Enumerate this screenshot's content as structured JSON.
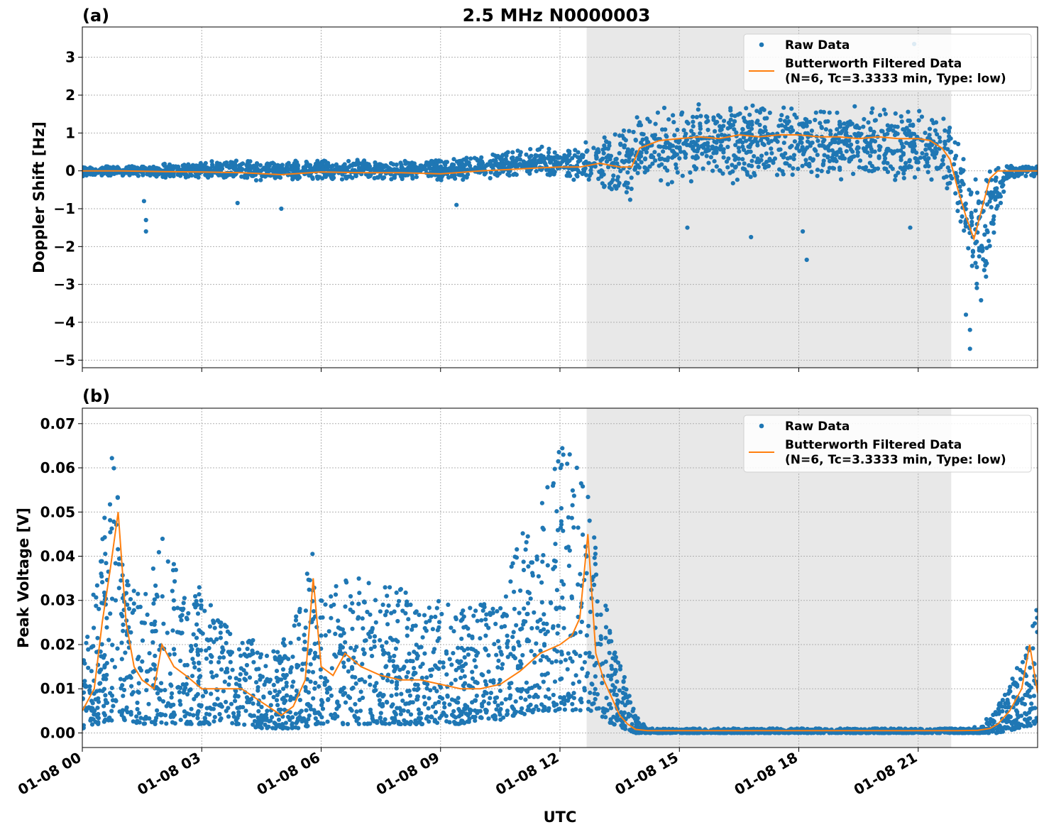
{
  "figure": {
    "title": "2.5 MHz N0000003",
    "xlabel": "UTC",
    "x_tick_labels": [
      "01-08 00",
      "01-08 03",
      "01-08 06",
      "01-08 09",
      "01-08 12",
      "01-08 15",
      "01-08 18",
      "01-08 21"
    ]
  },
  "colors": {
    "raw": "#1f77b4",
    "filtered": "#ff7f0e",
    "shade": "#e8e8e8"
  },
  "chart_data": [
    {
      "type": "scatter",
      "panel": "(a)",
      "title": "2.5 MHz N0000003",
      "xlabel": "",
      "ylabel": "Doppler Shift [Hz]",
      "xlim": [
        0,
        24
      ],
      "ylim": [
        -5.2,
        3.8
      ],
      "x_unit": "hours UTC on 01-08",
      "x_ticks": [
        0,
        3,
        6,
        9,
        12,
        15,
        18,
        21
      ],
      "y_ticks": [
        3,
        2,
        1,
        0,
        -1,
        -2,
        -3,
        -4,
        -5
      ],
      "y_tick_labels": [
        "3",
        "2",
        "1",
        "0",
        "−1",
        "−2",
        "−3",
        "−4",
        "−5"
      ],
      "grid": true,
      "legend_position": "top-right",
      "shaded_span": [
        12.67,
        21.83
      ],
      "series": [
        {
          "name": "Raw Data",
          "kind": "points",
          "envelope_x": [
            0,
            1,
            2,
            3,
            4,
            5,
            6,
            7,
            8,
            9,
            10,
            11,
            11.5,
            12,
            12.5,
            13,
            13.5,
            13.8,
            14,
            15,
            16,
            17,
            18,
            19,
            20,
            21,
            21.5,
            21.8,
            22,
            22.3,
            22.6,
            22.9,
            23.2,
            23.5,
            24
          ],
          "envelope_low": [
            -0.15,
            -0.15,
            -0.2,
            -0.2,
            -0.25,
            -0.3,
            -0.25,
            -0.25,
            -0.25,
            -0.3,
            -0.25,
            -0.2,
            -0.2,
            -0.2,
            -0.3,
            -0.5,
            -0.7,
            -0.8,
            -0.6,
            -0.4,
            -0.4,
            -0.3,
            -0.3,
            -0.3,
            -0.3,
            -0.3,
            -0.4,
            -0.6,
            -1.5,
            -3.0,
            -3.8,
            -2.0,
            -0.4,
            -0.2,
            -0.15
          ],
          "envelope_high": [
            0.15,
            0.15,
            0.2,
            0.25,
            0.3,
            0.3,
            0.3,
            0.3,
            0.3,
            0.35,
            0.45,
            0.6,
            0.65,
            0.7,
            0.8,
            0.9,
            1.1,
            1.4,
            1.7,
            1.8,
            1.85,
            1.8,
            1.8,
            1.75,
            1.75,
            1.7,
            1.65,
            1.5,
            0.8,
            0.4,
            0.2,
            0.2,
            0.2,
            0.15,
            0.15
          ],
          "outliers": [
            [
              1.6,
              -1.6
            ],
            [
              1.6,
              -1.3
            ],
            [
              1.55,
              -0.8
            ],
            [
              3.9,
              -0.85
            ],
            [
              5.0,
              -1.0
            ],
            [
              9.4,
              -0.9
            ],
            [
              15.2,
              -1.5
            ],
            [
              16.8,
              -1.75
            ],
            [
              18.1,
              -1.6
            ],
            [
              18.2,
              -2.35
            ],
            [
              20.8,
              -1.5
            ],
            [
              20.9,
              3.35
            ],
            [
              22.3,
              -4.7
            ],
            [
              22.3,
              -4.2
            ],
            [
              22.2,
              -3.8
            ]
          ]
        },
        {
          "name": "Butterworth Filtered Data\n(N=6, Tc=3.3333 min, Type: low)",
          "kind": "line",
          "x": [
            0,
            1,
            2,
            3,
            4,
            5,
            6,
            7,
            8,
            9,
            10,
            11,
            11.5,
            12,
            12.5,
            13,
            13.5,
            13.8,
            14,
            14.5,
            15,
            15.5,
            16,
            16.5,
            17,
            17.5,
            18,
            18.5,
            19,
            19.5,
            20,
            20.5,
            21,
            21.3,
            21.6,
            21.8,
            22,
            22.2,
            22.4,
            22.6,
            22.8,
            23,
            23.5,
            24
          ],
          "y": [
            0.0,
            0.0,
            -0.02,
            -0.03,
            -0.05,
            -0.1,
            -0.03,
            -0.05,
            -0.05,
            -0.08,
            0.0,
            0.05,
            0.08,
            0.1,
            0.1,
            0.2,
            0.1,
            0.1,
            0.6,
            0.8,
            0.85,
            0.9,
            0.85,
            0.95,
            0.9,
            0.95,
            0.95,
            0.9,
            0.9,
            0.85,
            0.9,
            0.85,
            0.85,
            0.8,
            0.6,
            0.3,
            -0.5,
            -1.2,
            -1.8,
            -1.0,
            -0.2,
            0.0,
            0.0,
            0.0
          ]
        }
      ]
    },
    {
      "type": "scatter",
      "panel": "(b)",
      "title": "",
      "xlabel": "UTC",
      "ylabel": "Peak Voltage [V]",
      "xlim": [
        0,
        24
      ],
      "ylim": [
        -0.0033,
        0.0735
      ],
      "x_unit": "hours UTC on 01-08",
      "x_ticks": [
        0,
        3,
        6,
        9,
        12,
        15,
        18,
        21
      ],
      "y_ticks": [
        0.07,
        0.06,
        0.05,
        0.04,
        0.03,
        0.02,
        0.01,
        0.0
      ],
      "y_tick_labels": [
        "0.07",
        "0.06",
        "0.05",
        "0.04",
        "0.03",
        "0.02",
        "0.01",
        "0.00"
      ],
      "grid": true,
      "legend_position": "top-right",
      "shaded_span": [
        12.67,
        21.83
      ],
      "series": [
        {
          "name": "Raw Data",
          "kind": "points",
          "envelope_x": [
            0,
            0.5,
            0.8,
            1,
            1.5,
            2,
            2.5,
            3,
            3.5,
            4,
            4.5,
            5,
            5.5,
            5.8,
            6,
            6.5,
            7,
            7.5,
            8,
            8.5,
            9,
            9.5,
            10,
            10.5,
            11,
            11.5,
            12,
            12.5,
            12.7,
            13,
            13.3,
            13.6,
            13.9,
            14.2,
            15,
            18,
            21,
            22,
            22.3,
            22.6,
            23,
            23.5,
            24
          ],
          "envelope_low": [
            0.001,
            0.002,
            0.003,
            0.003,
            0.002,
            0.002,
            0.002,
            0.002,
            0.002,
            0.002,
            0.001,
            0.001,
            0.001,
            0.002,
            0.002,
            0.002,
            0.002,
            0.002,
            0.002,
            0.002,
            0.002,
            0.002,
            0.003,
            0.003,
            0.004,
            0.005,
            0.005,
            0.005,
            0.005,
            0.004,
            0.002,
            0.001,
            0.0,
            0.0,
            0.0,
            0.0,
            0.0,
            0.0,
            0.0,
            0.0,
            0.0,
            0.001,
            0.002
          ],
          "envelope_high": [
            0.015,
            0.045,
            0.07,
            0.04,
            0.03,
            0.045,
            0.035,
            0.033,
            0.025,
            0.025,
            0.018,
            0.02,
            0.03,
            0.043,
            0.03,
            0.035,
            0.036,
            0.033,
            0.033,
            0.03,
            0.03,
            0.028,
            0.03,
            0.03,
            0.045,
            0.05,
            0.07,
            0.062,
            0.055,
            0.035,
            0.025,
            0.015,
            0.004,
            0.001,
            0.001,
            0.001,
            0.001,
            0.001,
            0.001,
            0.002,
            0.006,
            0.015,
            0.029
          ]
        },
        {
          "name": "Butterworth Filtered Data\n(N=6, Tc=3.3333 min, Type: low)",
          "kind": "line",
          "x": [
            0,
            0.3,
            0.5,
            0.7,
            0.9,
            1.1,
            1.3,
            1.5,
            1.8,
            2.0,
            2.3,
            2.6,
            3.0,
            3.5,
            4.0,
            4.5,
            5.0,
            5.3,
            5.6,
            5.8,
            6.0,
            6.3,
            6.6,
            7.0,
            7.5,
            8.0,
            8.5,
            9.0,
            9.5,
            10.0,
            10.5,
            11.0,
            11.5,
            12.0,
            12.3,
            12.5,
            12.7,
            12.9,
            13.1,
            13.3,
            13.5,
            13.7,
            13.9,
            14.2,
            15,
            18,
            21,
            22,
            22.5,
            22.8,
            23.0,
            23.3,
            23.6,
            23.8,
            24
          ],
          "y": [
            0.005,
            0.01,
            0.025,
            0.037,
            0.05,
            0.025,
            0.015,
            0.012,
            0.01,
            0.02,
            0.015,
            0.013,
            0.01,
            0.01,
            0.01,
            0.007,
            0.004,
            0.006,
            0.012,
            0.035,
            0.015,
            0.013,
            0.018,
            0.015,
            0.013,
            0.012,
            0.012,
            0.011,
            0.01,
            0.01,
            0.011,
            0.014,
            0.018,
            0.02,
            0.022,
            0.026,
            0.045,
            0.018,
            0.012,
            0.008,
            0.004,
            0.002,
            0.0008,
            0.0005,
            0.0005,
            0.0005,
            0.0005,
            0.0005,
            0.0006,
            0.001,
            0.002,
            0.005,
            0.01,
            0.02,
            0.009
          ]
        }
      ]
    }
  ]
}
